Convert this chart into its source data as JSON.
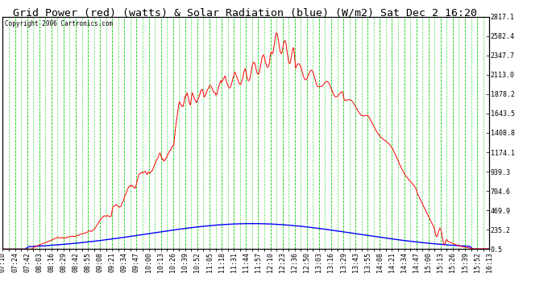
{
  "title": "Grid Power (red) (watts) & Solar Radiation (blue) (W/m2) Sat Dec 2 16:20",
  "copyright": "Copyright 2006 Cartronics.com",
  "plot_bg_color": "#ffffff",
  "fig_bg_color": "#ffffff",
  "grid_color": "#00cc00",
  "red_line_color": "#ff0000",
  "blue_line_color": "#0000ff",
  "yticks": [
    0.5,
    235.2,
    469.9,
    704.6,
    939.3,
    1174.1,
    1408.8,
    1643.5,
    1878.2,
    2113.0,
    2347.7,
    2582.4,
    2817.1
  ],
  "xtick_labels": [
    "07:10",
    "07:24",
    "07:42",
    "08:03",
    "08:16",
    "08:29",
    "08:42",
    "08:55",
    "09:08",
    "09:21",
    "09:34",
    "09:47",
    "10:00",
    "10:13",
    "10:26",
    "10:39",
    "10:52",
    "11:05",
    "11:18",
    "11:31",
    "11:44",
    "11:57",
    "12:10",
    "12:23",
    "12:36",
    "12:50",
    "13:03",
    "13:16",
    "13:29",
    "13:43",
    "13:55",
    "14:08",
    "14:21",
    "14:34",
    "14:47",
    "15:00",
    "15:13",
    "15:26",
    "15:39",
    "15:52",
    "16:13"
  ],
  "ylim": [
    0.5,
    2817.1
  ],
  "title_fontsize": 9.5,
  "tick_fontsize": 6.0
}
